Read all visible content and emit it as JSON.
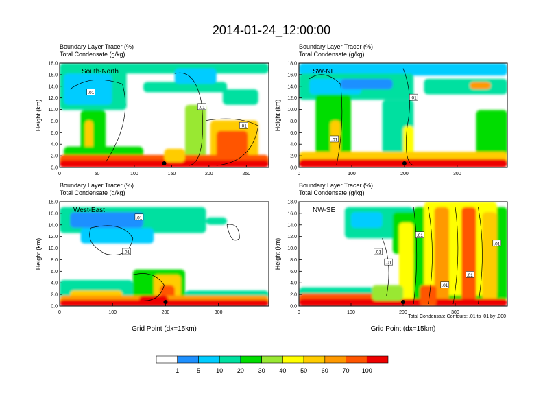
{
  "title": "2014-01-24_12:00:00",
  "colorbar": {
    "colors": [
      "#ffffff",
      "#1e90ff",
      "#00ccff",
      "#00e0a0",
      "#00dd00",
      "#99e833",
      "#ffff00",
      "#ffcc00",
      "#ff9900",
      "#ff5500",
      "#ee0000"
    ],
    "labels": [
      "1",
      "5",
      "10",
      "20",
      "30",
      "40",
      "50",
      "60",
      "70",
      "100"
    ]
  },
  "contour_note": "Total Condensate Contours: .01 to .01 by .000",
  "chart_data": [
    {
      "type": "heatmap",
      "name": "South-North",
      "subtitle_top": "Boundary Layer Tracer   (%)",
      "subtitle_bottom": "Total Condensate   (g/kg)",
      "xlabel": "",
      "ylabel": "Height (km)",
      "xlim": [
        0,
        280
      ],
      "ylim": [
        0,
        18
      ],
      "xticks": [
        0,
        50,
        100,
        150,
        200,
        250
      ],
      "yticks": [
        "0.0",
        "2.0",
        "4.0",
        "6.0",
        "8.0",
        "10.0",
        "12.0",
        "14.0",
        "16.0",
        "18.0"
      ],
      "contour_labels": [
        ".01",
        ".01",
        ".01"
      ],
      "marker_x": 140
    },
    {
      "type": "heatmap",
      "name": "SW-NE",
      "subtitle_top": "Boundary Layer Tracer   (%)",
      "subtitle_bottom": "Total Condensate   (g/kg)",
      "xlabel": "",
      "ylabel": "Height (km)",
      "xlim": [
        0,
        395
      ],
      "ylim": [
        0,
        18
      ],
      "xticks": [
        0,
        100,
        200,
        300
      ],
      "yticks": [
        "0.0",
        "2.0",
        "4.0",
        "6.0",
        "8.0",
        "10.0",
        "12.0",
        "14.0",
        "16.0",
        "18.0"
      ],
      "contour_labels": [
        ".01",
        ".01"
      ],
      "marker_x": 200
    },
    {
      "type": "heatmap",
      "name": "West-East",
      "subtitle_top": "Boundary Layer Tracer   (%)",
      "subtitle_bottom": "Total Condensate   (g/kg)",
      "xlabel": "Grid Point (dx=15km)",
      "ylabel": "Height (km)",
      "xlim": [
        0,
        395
      ],
      "ylim": [
        0,
        18
      ],
      "xticks": [
        0,
        100,
        200,
        300
      ],
      "yticks": [
        "0.0",
        "2.0",
        "4.0",
        "6.0",
        "8.0",
        "10.0",
        "12.0",
        "14.0",
        "16.0",
        "18.0"
      ],
      "contour_labels": [
        ".01",
        ".01"
      ],
      "marker_x": 200
    },
    {
      "type": "heatmap",
      "name": "NW-SE",
      "subtitle_top": "Boundary Layer Tracer   (%)",
      "subtitle_bottom": "Total Condensate   (g/kg)",
      "xlabel": "Grid Point (dx=15km)",
      "ylabel": "Height (km)",
      "xlim": [
        0,
        400
      ],
      "ylim": [
        0,
        18
      ],
      "xticks": [
        0,
        100,
        200,
        300
      ],
      "yticks": [
        "0.0",
        "2.0",
        "4.0",
        "6.0",
        "8.0",
        "10.0",
        "12.0",
        "14.0",
        "16.0",
        "18.0"
      ],
      "contour_labels": [
        ".01",
        ".01",
        ".01",
        ".01",
        ".01",
        ".01"
      ],
      "marker_x": 200
    }
  ]
}
